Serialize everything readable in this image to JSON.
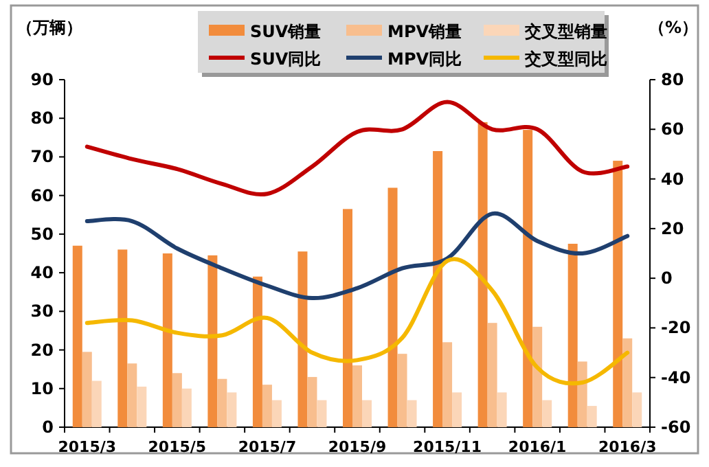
{
  "chart_data": {
    "type": "bar",
    "ylabel": "（万辆）",
    "y2label": "（%）",
    "categories": [
      "2015/3",
      null,
      "2015/5",
      null,
      "2015/7",
      null,
      "2015/9",
      null,
      "2015/11",
      null,
      "2016/1",
      null,
      "2016/3"
    ],
    "series": [
      {
        "name": "SUV销量",
        "color": "#f28c3c",
        "values": [
          47,
          46,
          45,
          44.5,
          39,
          45.5,
          56.5,
          62,
          71.5,
          79,
          77,
          47.5,
          69
        ]
      },
      {
        "name": "MPV销量",
        "color": "#f8be8e",
        "values": [
          19.5,
          16.5,
          14,
          12.5,
          11,
          13,
          16,
          19,
          22,
          27,
          26,
          17,
          23
        ]
      },
      {
        "name": "交叉型销量",
        "color": "#fbd6b8",
        "values": [
          12,
          10.5,
          10,
          9,
          7,
          7,
          7,
          7,
          9,
          9,
          7,
          5.5,
          9
        ]
      },
      {
        "name": "SUV同比",
        "type": "line",
        "axis": "y2",
        "color": "#c00000",
        "values": [
          53,
          48,
          44,
          38,
          34,
          45,
          59,
          60,
          71,
          60,
          60,
          43,
          45
        ]
      },
      {
        "name": "MPV同比",
        "type": "line",
        "axis": "y2",
        "color": "#1f3f6e",
        "values": [
          23,
          23,
          12,
          4,
          -3,
          -8,
          -4,
          4,
          8,
          26,
          15,
          10,
          17
        ]
      },
      {
        "name": "交叉型同比",
        "type": "line",
        "axis": "y2",
        "color": "#f5b800",
        "values": [
          -18,
          -17,
          -22,
          -23,
          -16,
          -30,
          -33,
          -24,
          7,
          -5,
          -36,
          -42,
          -30
        ]
      }
    ],
    "ylim": [
      0,
      90
    ],
    "yticks": [
      0,
      10,
      20,
      30,
      40,
      50,
      60,
      70,
      80,
      90
    ],
    "y2lim": [
      -60,
      80
    ],
    "y2ticks": [
      -60,
      -40,
      -20,
      0,
      20,
      40,
      60,
      80
    ],
    "legend": "top",
    "line_style": "solid",
    "marker": "none"
  }
}
